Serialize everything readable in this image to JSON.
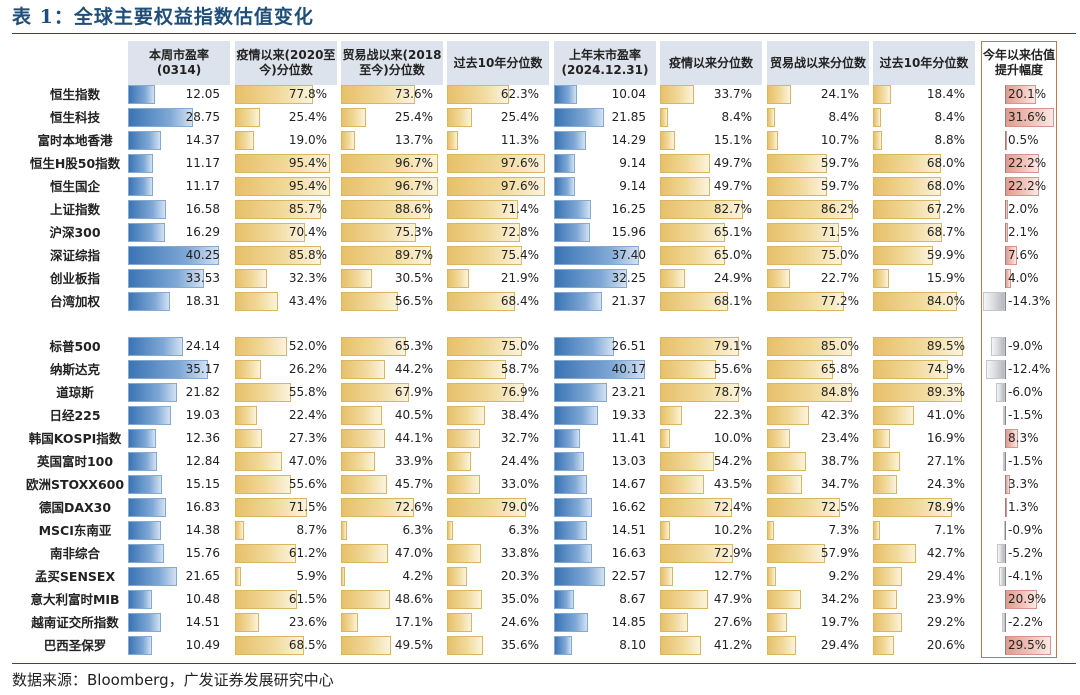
{
  "title": "表 1：全球主要权益指数估值变化",
  "source": "数据来源：Bloomberg，广发证券发展研究中心",
  "columns": [
    {
      "key": "pe_now",
      "label": "本周市盈率(0314)",
      "type": "pe"
    },
    {
      "key": "pct_covid",
      "label": "疫情以来(2020至今)分位数",
      "type": "pct"
    },
    {
      "key": "pct_trade",
      "label": "贸易战以来(2018至今)分位数",
      "type": "pct"
    },
    {
      "key": "pct_10y",
      "label": "过去10年分位数",
      "type": "pct"
    },
    {
      "key": "pe_ye",
      "label": "上年末市盈率(2024.12.31)",
      "type": "pe"
    },
    {
      "key": "pct_covid_ye",
      "label": "疫情以来分位数",
      "type": "pct"
    },
    {
      "key": "pct_trade_ye",
      "label": "贸易战以来分位数",
      "type": "pct"
    },
    {
      "key": "pct_10y_ye",
      "label": "过去10年分位数",
      "type": "pct"
    },
    {
      "key": "ytd_change",
      "label": "今年以来估值提升幅度",
      "type": "chg"
    }
  ],
  "rows": [
    {
      "name": "恒生指数",
      "pe_now": "12.05",
      "pct_covid": "77.8%",
      "pct_trade": "73.6%",
      "pct_10y": "62.3%",
      "pe_ye": "10.04",
      "pct_covid_ye": "33.7%",
      "pct_trade_ye": "24.1%",
      "pct_10y_ye": "18.4%",
      "ytd_change": "20.1%"
    },
    {
      "name": "恒生科技",
      "pe_now": "28.75",
      "pct_covid": "25.4%",
      "pct_trade": "25.4%",
      "pct_10y": "25.4%",
      "pe_ye": "21.85",
      "pct_covid_ye": "8.4%",
      "pct_trade_ye": "8.4%",
      "pct_10y_ye": "8.4%",
      "ytd_change": "31.6%"
    },
    {
      "name": "富时本地香港",
      "pe_now": "14.37",
      "pct_covid": "19.0%",
      "pct_trade": "13.7%",
      "pct_10y": "11.3%",
      "pe_ye": "14.29",
      "pct_covid_ye": "15.1%",
      "pct_trade_ye": "10.7%",
      "pct_10y_ye": "8.8%",
      "ytd_change": "0.5%"
    },
    {
      "name": "恒生H股50指数",
      "pe_now": "11.17",
      "pct_covid": "95.4%",
      "pct_trade": "96.7%",
      "pct_10y": "97.6%",
      "pe_ye": "9.14",
      "pct_covid_ye": "49.7%",
      "pct_trade_ye": "59.7%",
      "pct_10y_ye": "68.0%",
      "ytd_change": "22.2%"
    },
    {
      "name": "恒生国企",
      "pe_now": "11.17",
      "pct_covid": "95.4%",
      "pct_trade": "96.7%",
      "pct_10y": "97.6%",
      "pe_ye": "9.14",
      "pct_covid_ye": "49.7%",
      "pct_trade_ye": "59.7%",
      "pct_10y_ye": "68.0%",
      "ytd_change": "22.2%"
    },
    {
      "name": "上证指数",
      "pe_now": "16.58",
      "pct_covid": "85.7%",
      "pct_trade": "88.6%",
      "pct_10y": "71.4%",
      "pe_ye": "16.25",
      "pct_covid_ye": "82.7%",
      "pct_trade_ye": "86.2%",
      "pct_10y_ye": "67.2%",
      "ytd_change": "2.0%"
    },
    {
      "name": "沪深300",
      "pe_now": "16.29",
      "pct_covid": "70.4%",
      "pct_trade": "75.3%",
      "pct_10y": "72.8%",
      "pe_ye": "15.96",
      "pct_covid_ye": "65.1%",
      "pct_trade_ye": "71.5%",
      "pct_10y_ye": "68.7%",
      "ytd_change": "2.1%"
    },
    {
      "name": "深证综指",
      "pe_now": "40.25",
      "pct_covid": "85.8%",
      "pct_trade": "89.7%",
      "pct_10y": "75.4%",
      "pe_ye": "37.40",
      "pct_covid_ye": "65.0%",
      "pct_trade_ye": "75.0%",
      "pct_10y_ye": "59.9%",
      "ytd_change": "7.6%"
    },
    {
      "name": "创业板指",
      "pe_now": "33.53",
      "pct_covid": "32.3%",
      "pct_trade": "30.5%",
      "pct_10y": "21.9%",
      "pe_ye": "32.25",
      "pct_covid_ye": "24.9%",
      "pct_trade_ye": "22.7%",
      "pct_10y_ye": "15.9%",
      "ytd_change": "4.0%"
    },
    {
      "name": "台湾加权",
      "pe_now": "18.31",
      "pct_covid": "43.4%",
      "pct_trade": "56.5%",
      "pct_10y": "68.4%",
      "pe_ye": "21.37",
      "pct_covid_ye": "68.1%",
      "pct_trade_ye": "77.2%",
      "pct_10y_ye": "84.0%",
      "ytd_change": "-14.3%"
    },
    {
      "name": "标普500",
      "pe_now": "24.14",
      "pct_covid": "52.0%",
      "pct_trade": "65.3%",
      "pct_10y": "75.0%",
      "pe_ye": "26.51",
      "pct_covid_ye": "79.1%",
      "pct_trade_ye": "85.0%",
      "pct_10y_ye": "89.5%",
      "ytd_change": "-9.0%"
    },
    {
      "name": "纳斯达克",
      "pe_now": "35.17",
      "pct_covid": "26.2%",
      "pct_trade": "44.2%",
      "pct_10y": "58.7%",
      "pe_ye": "40.17",
      "pct_covid_ye": "55.6%",
      "pct_trade_ye": "65.8%",
      "pct_10y_ye": "74.9%",
      "ytd_change": "-12.4%"
    },
    {
      "name": "道琼斯",
      "pe_now": "21.82",
      "pct_covid": "55.8%",
      "pct_trade": "67.9%",
      "pct_10y": "76.9%",
      "pe_ye": "23.21",
      "pct_covid_ye": "78.7%",
      "pct_trade_ye": "84.8%",
      "pct_10y_ye": "89.3%",
      "ytd_change": "-6.0%"
    },
    {
      "name": "日经225",
      "pe_now": "19.03",
      "pct_covid": "22.4%",
      "pct_trade": "40.5%",
      "pct_10y": "38.4%",
      "pe_ye": "19.33",
      "pct_covid_ye": "22.3%",
      "pct_trade_ye": "42.3%",
      "pct_10y_ye": "41.0%",
      "ytd_change": "-1.5%"
    },
    {
      "name": "韩国KOSPI指数",
      "pe_now": "12.36",
      "pct_covid": "27.3%",
      "pct_trade": "44.1%",
      "pct_10y": "32.7%",
      "pe_ye": "11.41",
      "pct_covid_ye": "10.0%",
      "pct_trade_ye": "23.4%",
      "pct_10y_ye": "16.9%",
      "ytd_change": "8.3%"
    },
    {
      "name": "英国富时100",
      "pe_now": "12.84",
      "pct_covid": "47.0%",
      "pct_trade": "33.9%",
      "pct_10y": "24.4%",
      "pe_ye": "13.03",
      "pct_covid_ye": "54.2%",
      "pct_trade_ye": "38.7%",
      "pct_10y_ye": "27.1%",
      "ytd_change": "-1.5%"
    },
    {
      "name": "欧洲STOXX600",
      "pe_now": "15.15",
      "pct_covid": "55.6%",
      "pct_trade": "45.7%",
      "pct_10y": "33.0%",
      "pe_ye": "14.67",
      "pct_covid_ye": "43.5%",
      "pct_trade_ye": "34.7%",
      "pct_10y_ye": "24.3%",
      "ytd_change": "3.3%"
    },
    {
      "name": "德国DAX30",
      "pe_now": "16.83",
      "pct_covid": "71.5%",
      "pct_trade": "72.6%",
      "pct_10y": "79.0%",
      "pe_ye": "16.62",
      "pct_covid_ye": "72.4%",
      "pct_trade_ye": "72.5%",
      "pct_10y_ye": "78.9%",
      "ytd_change": "1.3%"
    },
    {
      "name": "MSCI东南亚",
      "pe_now": "14.38",
      "pct_covid": "8.7%",
      "pct_trade": "6.3%",
      "pct_10y": "6.3%",
      "pe_ye": "14.51",
      "pct_covid_ye": "10.2%",
      "pct_trade_ye": "7.3%",
      "pct_10y_ye": "7.1%",
      "ytd_change": "-0.9%"
    },
    {
      "name": "南非综合",
      "pe_now": "15.76",
      "pct_covid": "61.2%",
      "pct_trade": "47.0%",
      "pct_10y": "33.8%",
      "pe_ye": "16.63",
      "pct_covid_ye": "72.9%",
      "pct_trade_ye": "57.9%",
      "pct_10y_ye": "42.7%",
      "ytd_change": "-5.2%"
    },
    {
      "name": "孟买SENSEX",
      "pe_now": "21.65",
      "pct_covid": "5.9%",
      "pct_trade": "4.2%",
      "pct_10y": "20.3%",
      "pe_ye": "22.57",
      "pct_covid_ye": "12.7%",
      "pct_trade_ye": "9.2%",
      "pct_10y_ye": "29.4%",
      "ytd_change": "-4.1%"
    },
    {
      "name": "意大利富时MIB",
      "pe_now": "10.48",
      "pct_covid": "61.5%",
      "pct_trade": "48.6%",
      "pct_10y": "35.0%",
      "pe_ye": "8.67",
      "pct_covid_ye": "47.9%",
      "pct_trade_ye": "34.2%",
      "pct_10y_ye": "23.9%",
      "ytd_change": "20.9%"
    },
    {
      "name": "越南证交所指数",
      "pe_now": "14.51",
      "pct_covid": "23.6%",
      "pct_trade": "17.1%",
      "pct_10y": "24.6%",
      "pe_ye": "14.85",
      "pct_covid_ye": "27.6%",
      "pct_trade_ye": "19.7%",
      "pct_10y_ye": "29.2%",
      "ytd_change": "-2.2%"
    },
    {
      "name": "巴西圣保罗",
      "pe_now": "10.49",
      "pct_covid": "68.5%",
      "pct_trade": "49.5%",
      "pct_10y": "35.6%",
      "pe_ye": "8.10",
      "pct_covid_ye": "41.2%",
      "pct_trade_ye": "29.4%",
      "pct_10y_ye": "20.6%",
      "ytd_change": "29.5%"
    }
  ]
}
